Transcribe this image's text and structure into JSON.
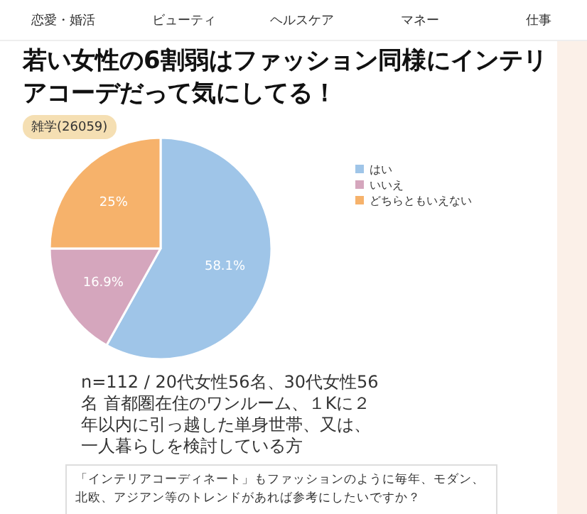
{
  "chart_data": {
    "type": "pie",
    "title": "若い女性の6割弱はファッション同様にインテリアコーデだって気にしてる！",
    "subtitle": "雑学(26059)",
    "categories": [
      "はい",
      "いいえ",
      "どちらともいえない"
    ],
    "values": [
      58.1,
      16.9,
      25
    ],
    "colors": [
      "#9fc5e8",
      "#d5a6bd",
      "#f6b26b"
    ],
    "value_labels": [
      "58.1%",
      "16.9%",
      "25%"
    ],
    "legend": "right",
    "annotations": [
      "恋愛・婚活",
      "ビューティ",
      "ヘルスケア",
      "マネー",
      "仕事",
      "n=112  / 20代女性56名、30代女性56名 首都圏在住のワンルーム、１Kに２年以内に引っ越した単身世帯、又は、一人暮らしを検討している方",
      "「インテリアコーディネート」もファッションのように毎年、モダン、北欧、アジアン等のトレンドがあれば参考にしたいですか？"
    ]
  }
}
